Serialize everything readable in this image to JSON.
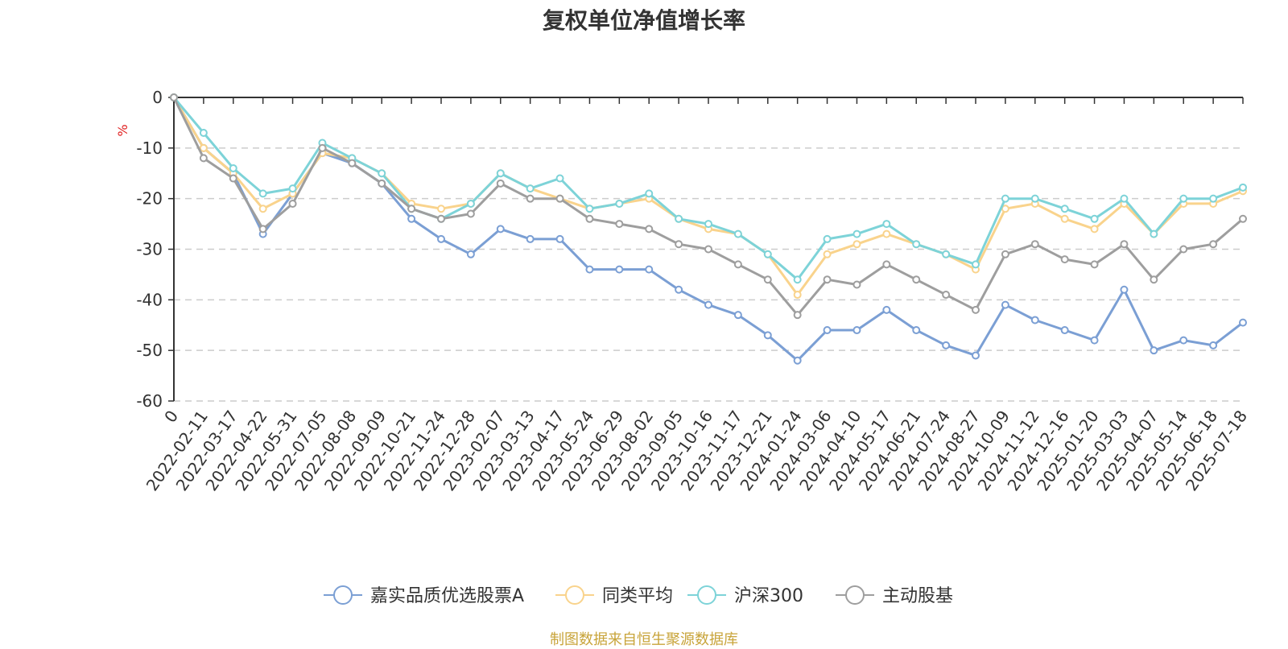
{
  "chart_data": {
    "type": "line",
    "title": "复权单位净值增长率",
    "ylabel": "%",
    "ylim": [
      -60,
      0
    ],
    "yticks": [
      0,
      -10,
      -20,
      -30,
      -40,
      -50,
      -60
    ],
    "x_origin_label": "0",
    "x_tick_labels": [
      "2022-02-11",
      "2022-03-17",
      "2022-04-22",
      "2022-05-31",
      "2022-07-05",
      "2022-08-08",
      "2022-09-09",
      "2022-10-21",
      "2022-11-24",
      "2022-12-28",
      "2023-02-07",
      "2023-03-13",
      "2023-04-17",
      "2023-05-24",
      "2023-06-29",
      "2023-08-02",
      "2023-09-05",
      "2023-10-16",
      "2023-11-17",
      "2023-12-21",
      "2024-01-24",
      "2024-03-06",
      "2024-04-10",
      "2024-05-17",
      "2024-06-21",
      "2024-07-24",
      "2024-08-27",
      "2024-10-09",
      "2024-11-12",
      "2024-12-16",
      "2025-01-20",
      "2025-03-03",
      "2025-04-07",
      "2025-05-14",
      "2025-06-18",
      "2025-07-18"
    ],
    "grid": true,
    "legend_position": "bottom",
    "x": [
      "0",
      "2022-02-11",
      "2022-03-17",
      "2022-04-22",
      "2022-05-31",
      "2022-07-05",
      "2022-08-08",
      "2022-09-09",
      "2022-10-21",
      "2022-11-24",
      "2022-12-28",
      "2023-02-07",
      "2023-03-13",
      "2023-04-17",
      "2023-05-24",
      "2023-06-29",
      "2023-08-02",
      "2023-09-05",
      "2023-10-16",
      "2023-11-17",
      "2023-12-21",
      "2024-01-24",
      "2024-03-06",
      "2024-04-10",
      "2024-05-17",
      "2024-06-21",
      "2024-07-24",
      "2024-08-27",
      "2024-10-09",
      "2024-11-12",
      "2024-12-16",
      "2025-01-20",
      "2025-03-03",
      "2025-04-07",
      "2025-05-14",
      "2025-06-18",
      "2025-07-18"
    ],
    "series": [
      {
        "name": "嘉实品质优选股票A",
        "color": "#7b9fd4",
        "values": [
          0,
          -10,
          -15,
          -27,
          -19,
          -11,
          -13,
          -17,
          -24,
          -28,
          -31,
          -26,
          -28,
          -28,
          -34,
          -34,
          -34,
          -38,
          -41,
          -43,
          -47,
          -52,
          -46,
          -46,
          -42,
          -46,
          -49,
          -51,
          -41,
          -44,
          -46,
          -48,
          -38,
          -50,
          -48,
          -49,
          -44.5
        ]
      },
      {
        "name": "同类平均",
        "color": "#f9d38c",
        "values": [
          0,
          -10,
          -15,
          -22,
          -19,
          -11,
          -12,
          -15,
          -21,
          -22,
          -21,
          -15,
          -18,
          -20,
          -22,
          -21,
          -20,
          -24,
          -26,
          -27,
          -31,
          -39,
          -31,
          -29,
          -27,
          -29,
          -31,
          -34,
          -22,
          -21,
          -24,
          -26,
          -21,
          -27,
          -21,
          -21,
          -18.5
        ]
      },
      {
        "name": "沪深300",
        "color": "#7dd3d8",
        "values": [
          0,
          -7,
          -14,
          -19,
          -18,
          -9,
          -12,
          -15,
          -22,
          -24,
          -21,
          -15,
          -18,
          -16,
          -22,
          -21,
          -19,
          -24,
          -25,
          -27,
          -31,
          -36,
          -28,
          -27,
          -25,
          -29,
          -31,
          -33,
          -20,
          -20,
          -22,
          -24,
          -20,
          -27,
          -20,
          -20,
          -17.8
        ]
      },
      {
        "name": "主动股基",
        "color": "#9e9e9e",
        "values": [
          0,
          -12,
          -16,
          -26,
          -21,
          -10,
          -13,
          -17,
          -22,
          -24,
          -23,
          -17,
          -20,
          -20,
          -24,
          -25,
          -26,
          -29,
          -30,
          -33,
          -36,
          -43,
          -36,
          -37,
          -33,
          -36,
          -39,
          -42,
          -31,
          -29,
          -32,
          -33,
          -29,
          -36,
          -30,
          -29,
          -24
        ]
      }
    ]
  },
  "source_note": "制图数据来自恒生聚源数据库"
}
